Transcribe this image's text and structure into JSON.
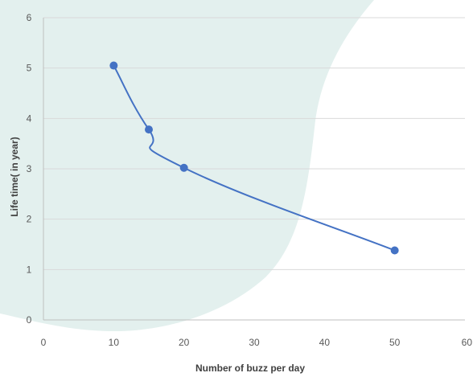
{
  "chart_data": {
    "type": "line",
    "xlabel": "Number of buzz per day",
    "ylabel": "Life time( in year)",
    "xlim": [
      0,
      60
    ],
    "ylim": [
      0,
      6
    ],
    "x_ticks": [
      0,
      10,
      20,
      30,
      40,
      50,
      60
    ],
    "y_ticks": [
      0,
      1,
      2,
      3,
      4,
      5,
      6
    ],
    "grid": "horizontal",
    "smoothed": true,
    "series": [
      {
        "color": "#4472c4",
        "points": [
          {
            "x": 10,
            "y": 5.05
          },
          {
            "x": 15,
            "y": 3.78
          },
          {
            "x": 20,
            "y": 3.02
          },
          {
            "x": 50,
            "y": 1.38
          }
        ]
      }
    ],
    "colors": {
      "background_shape": "#e3f0ee",
      "grid": "#d9d9d9",
      "axis": "#bfbfbf"
    }
  }
}
